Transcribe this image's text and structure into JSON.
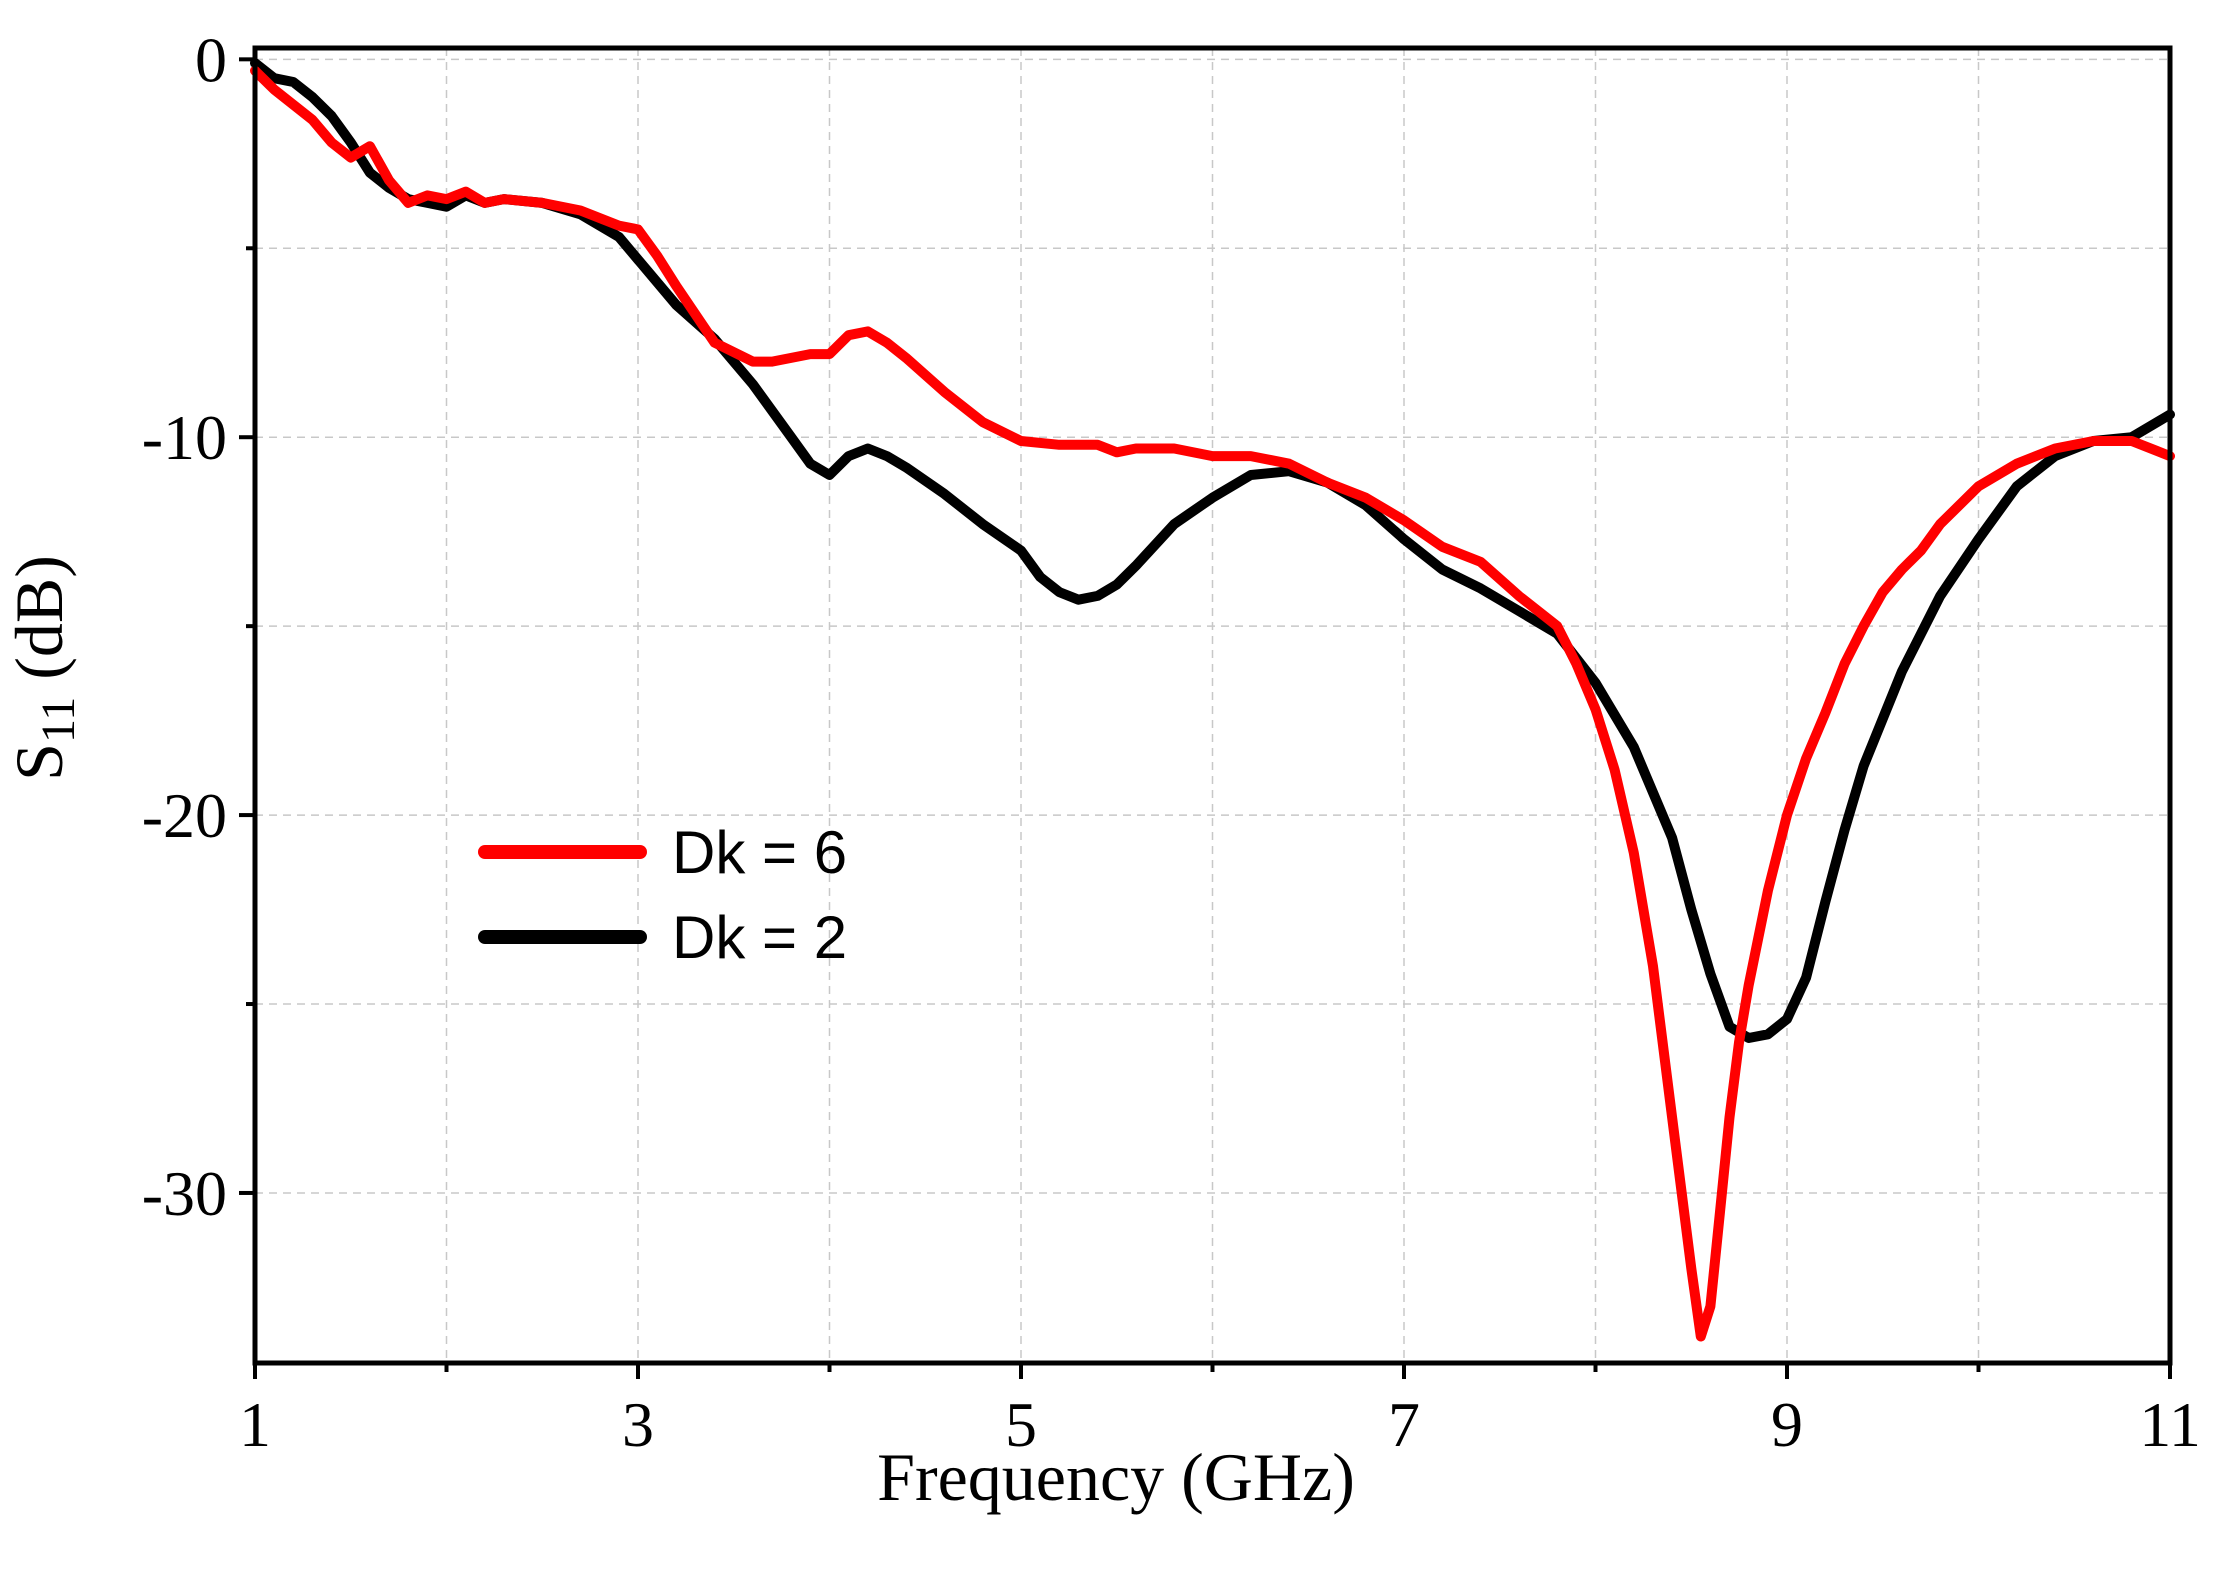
{
  "chart_data": {
    "type": "line",
    "title": "",
    "xlabel": "Frequency (GHz)",
    "ylabel_main": "S",
    "ylabel_sub": "11",
    "ylabel_unit": " (dB)",
    "xlim": [
      1,
      11
    ],
    "ylim": [
      -34.5,
      0.3
    ],
    "xticks": [
      1,
      3,
      5,
      7,
      9,
      11
    ],
    "xtick_labels": [
      "1",
      "3",
      "5",
      "7",
      "9",
      "11"
    ],
    "xticks_minor": [
      2,
      4,
      6,
      8,
      10
    ],
    "yticks": [
      0,
      -10,
      -20,
      -30
    ],
    "ytick_labels": [
      "0",
      "-10",
      "-20",
      "-30"
    ],
    "yticks_minor": [
      -5,
      -15,
      -25
    ],
    "grid": true,
    "legend_position": "center-left",
    "series": [
      {
        "name": "Dk = 6",
        "color": "#ff0000",
        "x": [
          1.0,
          1.1,
          1.2,
          1.3,
          1.4,
          1.5,
          1.6,
          1.7,
          1.8,
          1.9,
          2.0,
          2.1,
          2.2,
          2.3,
          2.5,
          2.7,
          2.9,
          3.0,
          3.1,
          3.2,
          3.4,
          3.6,
          3.7,
          3.8,
          3.9,
          4.0,
          4.1,
          4.2,
          4.3,
          4.4,
          4.6,
          4.8,
          5.0,
          5.2,
          5.4,
          5.5,
          5.6,
          5.8,
          6.0,
          6.2,
          6.4,
          6.6,
          6.8,
          7.0,
          7.2,
          7.4,
          7.6,
          7.8,
          7.9,
          8.0,
          8.1,
          8.2,
          8.3,
          8.4,
          8.5,
          8.55,
          8.6,
          8.65,
          8.7,
          8.75,
          8.8,
          8.9,
          9.0,
          9.1,
          9.2,
          9.3,
          9.4,
          9.5,
          9.6,
          9.7,
          9.8,
          10.0,
          10.2,
          10.4,
          10.6,
          10.8,
          11.0
        ],
        "y": [
          -0.3,
          -0.8,
          -1.2,
          -1.6,
          -2.2,
          -2.6,
          -2.3,
          -3.2,
          -3.8,
          -3.6,
          -3.7,
          -3.5,
          -3.8,
          -3.7,
          -3.8,
          -4.0,
          -4.4,
          -4.5,
          -5.2,
          -6.0,
          -7.5,
          -8.0,
          -8.0,
          -7.9,
          -7.8,
          -7.8,
          -7.3,
          -7.2,
          -7.5,
          -7.9,
          -8.8,
          -9.6,
          -10.1,
          -10.2,
          -10.2,
          -10.4,
          -10.3,
          -10.3,
          -10.5,
          -10.5,
          -10.7,
          -11.2,
          -11.6,
          -12.2,
          -12.9,
          -13.3,
          -14.2,
          -15.0,
          -16.0,
          -17.2,
          -18.8,
          -21.0,
          -24.0,
          -28.0,
          -32.0,
          -33.8,
          -33.0,
          -30.5,
          -28.0,
          -26.0,
          -24.5,
          -22.0,
          -20.0,
          -18.5,
          -17.3,
          -16.0,
          -15.0,
          -14.1,
          -13.5,
          -13.0,
          -12.3,
          -11.3,
          -10.7,
          -10.3,
          -10.1,
          -10.1,
          -10.5
        ]
      },
      {
        "name": "Dk = 2",
        "color": "#000000",
        "x": [
          1.0,
          1.1,
          1.2,
          1.3,
          1.4,
          1.5,
          1.6,
          1.7,
          1.8,
          1.9,
          2.0,
          2.1,
          2.2,
          2.3,
          2.5,
          2.7,
          2.9,
          3.0,
          3.2,
          3.4,
          3.6,
          3.8,
          3.9,
          4.0,
          4.1,
          4.2,
          4.3,
          4.4,
          4.6,
          4.8,
          5.0,
          5.1,
          5.2,
          5.3,
          5.4,
          5.5,
          5.6,
          5.8,
          6.0,
          6.2,
          6.4,
          6.6,
          6.8,
          7.0,
          7.2,
          7.4,
          7.6,
          7.8,
          8.0,
          8.2,
          8.4,
          8.5,
          8.6,
          8.7,
          8.8,
          8.9,
          9.0,
          9.1,
          9.2,
          9.3,
          9.4,
          9.6,
          9.8,
          10.0,
          10.2,
          10.4,
          10.6,
          10.8,
          11.0
        ],
        "y": [
          -0.1,
          -0.5,
          -0.6,
          -1.0,
          -1.5,
          -2.2,
          -3.0,
          -3.4,
          -3.7,
          -3.8,
          -3.9,
          -3.6,
          -3.8,
          -3.7,
          -3.8,
          -4.1,
          -4.7,
          -5.3,
          -6.5,
          -7.4,
          -8.6,
          -10.0,
          -10.7,
          -11.0,
          -10.5,
          -10.3,
          -10.5,
          -10.8,
          -11.5,
          -12.3,
          -13.0,
          -13.7,
          -14.1,
          -14.3,
          -14.2,
          -13.9,
          -13.4,
          -12.3,
          -11.6,
          -11.0,
          -10.9,
          -11.2,
          -11.8,
          -12.7,
          -13.5,
          -14.0,
          -14.6,
          -15.2,
          -16.5,
          -18.2,
          -20.6,
          -22.5,
          -24.2,
          -25.6,
          -25.9,
          -25.8,
          -25.4,
          -24.3,
          -22.3,
          -20.4,
          -18.7,
          -16.2,
          -14.2,
          -12.7,
          -11.3,
          -10.5,
          -10.1,
          -10.0,
          -9.4
        ]
      }
    ]
  }
}
